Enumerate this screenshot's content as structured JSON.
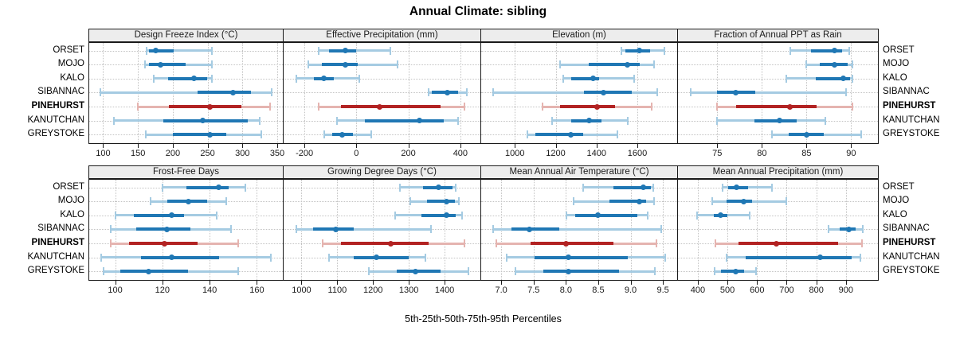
{
  "title": "Annual Climate: sibling",
  "footer_label": "5th-25th-50th-75th-95th Percentiles",
  "colors": {
    "site_dark": "#1f77b4",
    "site_light": "#a5cbe2",
    "highlight_dark": "#b22222",
    "highlight_light": "#e5b4b0",
    "strip_bg": "#ededed",
    "grid": "#c3c3c3",
    "border": "#1a1a1a"
  },
  "chart_data": {
    "type": "dot-interval percentile trellis (5th-25th-50th-75th-95th)",
    "grid": "dotted, on",
    "sites": [
      "ORSET",
      "MOJO",
      "KALO",
      "SIBANNAC",
      "PINEHURST",
      "KANUTCHAN",
      "GREYSTOKE"
    ],
    "highlight_site": "PINEHURST",
    "percentile_levels": [
      5,
      25,
      50,
      75,
      95
    ],
    "panels": [
      {
        "title": "Design Freeze Index (°C)",
        "row": 0,
        "col": 0,
        "xlim": [
          80,
          358
        ],
        "ticks": [
          100,
          150,
          200,
          250,
          300,
          350
        ],
        "tick_labels": [
          "100",
          "150",
          "200",
          "250",
          "300",
          "350"
        ],
        "values": [
          [
            162,
            166,
            175,
            201,
            256
          ],
          [
            160,
            166,
            182,
            219,
            256
          ],
          [
            173,
            193,
            231,
            249,
            256
          ],
          [
            96,
            236,
            287,
            312,
            342
          ],
          [
            150,
            194,
            253,
            299,
            340
          ],
          [
            116,
            186,
            243,
            308,
            325
          ],
          [
            161,
            200,
            253,
            277,
            327
          ]
        ]
      },
      {
        "title": "Effective Precipitation (mm)",
        "row": 0,
        "col": 1,
        "xlim": [
          -280,
          477
        ],
        "ticks": [
          -200,
          0,
          200,
          400
        ],
        "tick_labels": [
          "-200",
          "0",
          "200",
          "400"
        ],
        "values": [
          [
            -146,
            -104,
            -42,
            -2,
            130
          ],
          [
            -185,
            -134,
            -44,
            5,
            158
          ],
          [
            -230,
            -165,
            -124,
            -88,
            10
          ],
          [
            278,
            291,
            351,
            391,
            426
          ],
          [
            -144,
            -60,
            89,
            325,
            416
          ],
          [
            -74,
            32,
            244,
            335,
            391
          ],
          [
            -124,
            -94,
            -54,
            -14,
            58
          ]
        ]
      },
      {
        "title": "Elevation (m)",
        "row": 0,
        "col": 2,
        "xlim": [
          835,
          1795
        ],
        "ticks": [
          1000,
          1200,
          1400,
          1600
        ],
        "tick_labels": [
          "1000",
          "1200",
          "1400",
          "1600"
        ],
        "values": [
          [
            1520,
            1541,
            1608,
            1664,
            1732
          ],
          [
            1223,
            1363,
            1551,
            1612,
            1683
          ],
          [
            1236,
            1275,
            1385,
            1411,
            1586
          ],
          [
            892,
            1340,
            1434,
            1573,
            1696
          ],
          [
            1135,
            1220,
            1404,
            1492,
            1670
          ],
          [
            1184,
            1275,
            1363,
            1424,
            1553
          ],
          [
            1061,
            1100,
            1275,
            1333,
            1502
          ]
        ]
      },
      {
        "title": "Fraction of Annual PPT as Rain",
        "row": 0,
        "col": 3,
        "xlim": [
          70.6,
          93
        ],
        "ticks": [
          75,
          80,
          85,
          90
        ],
        "tick_labels": [
          "75",
          "80",
          "85",
          "90"
        ],
        "values": [
          [
            83.2,
            85.5,
            88.1,
            89.0,
            89.8
          ],
          [
            85.0,
            86.5,
            88.1,
            89.6,
            90.1
          ],
          [
            82.7,
            86.0,
            89.1,
            89.9,
            90.1
          ],
          [
            72.0,
            75.0,
            77.1,
            79.3,
            89.4
          ],
          [
            75.0,
            77.1,
            83.1,
            86.1,
            90.1
          ],
          [
            75.0,
            79.2,
            82.0,
            83.9,
            87.1
          ],
          [
            81.1,
            83.0,
            85.0,
            86.9,
            91.1
          ]
        ]
      },
      {
        "title": "Frost-Free Days",
        "row": 1,
        "col": 0,
        "xlim": [
          89,
          171
        ],
        "ticks": [
          100,
          120,
          140,
          160
        ],
        "tick_labels": [
          "100",
          "120",
          "140",
          "160"
        ],
        "values": [
          [
            120,
            130,
            144,
            148,
            155
          ],
          [
            115,
            122,
            131,
            139,
            147
          ],
          [
            100,
            108,
            124,
            129,
            143
          ],
          [
            98,
            109,
            122,
            132,
            149
          ],
          [
            98,
            106,
            121,
            135,
            152
          ],
          [
            94,
            111,
            124,
            144,
            166
          ],
          [
            95,
            102,
            114,
            131,
            152
          ]
        ]
      },
      {
        "title": "Growing Degree Days (°C)",
        "row": 1,
        "col": 1,
        "xlim": [
          950,
          1500
        ],
        "ticks": [
          1000,
          1100,
          1200,
          1300,
          1400
        ],
        "tick_labels": [
          "1000",
          "1100",
          "1200",
          "1300",
          "1400"
        ],
        "values": [
          [
            1276,
            1340,
            1383,
            1421,
            1432
          ],
          [
            1305,
            1350,
            1405,
            1428,
            1440
          ],
          [
            1262,
            1336,
            1405,
            1432,
            1448
          ],
          [
            985,
            1032,
            1096,
            1146,
            1363
          ],
          [
            1060,
            1110,
            1250,
            1356,
            1455
          ],
          [
            1077,
            1145,
            1210,
            1300,
            1346
          ],
          [
            1188,
            1266,
            1319,
            1389,
            1466
          ]
        ]
      },
      {
        "title": "Mean Annual Air Temperature (°C)",
        "row": 1,
        "col": 2,
        "xlim": [
          6.69,
          9.72
        ],
        "ticks": [
          7.0,
          7.5,
          8.0,
          8.5,
          9.0,
          9.5
        ],
        "tick_labels": [
          "7.0",
          "7.5",
          "8.0",
          "8.5",
          "9.0",
          "9.5"
        ],
        "values": [
          [
            8.27,
            8.73,
            9.2,
            9.31,
            9.35
          ],
          [
            8.12,
            8.67,
            9.13,
            9.24,
            9.36
          ],
          [
            8.01,
            8.14,
            8.49,
            9.1,
            9.27
          ],
          [
            6.88,
            7.16,
            7.43,
            7.9,
            9.47
          ],
          [
            6.93,
            7.45,
            8.0,
            8.73,
            9.4
          ],
          [
            7.08,
            7.51,
            8.04,
            8.96,
            9.54
          ],
          [
            7.22,
            7.65,
            8.04,
            8.82,
            9.37
          ]
        ]
      },
      {
        "title": "Mean Annual Precipitation (mm)",
        "row": 1,
        "col": 3,
        "xlim": [
          333,
          1008
        ],
        "ticks": [
          400,
          500,
          600,
          700,
          800,
          900
        ],
        "tick_labels": [
          "400",
          "500",
          "600",
          "700",
          "800",
          "900"
        ],
        "values": [
          [
            483,
            503,
            531,
            570,
            650
          ],
          [
            449,
            498,
            554,
            583,
            699
          ],
          [
            397,
            454,
            478,
            500,
            576
          ],
          [
            840,
            878,
            909,
            933,
            958
          ],
          [
            460,
            538,
            665,
            873,
            954
          ],
          [
            496,
            561,
            812,
            920,
            949
          ],
          [
            458,
            478,
            529,
            556,
            596
          ]
        ]
      }
    ]
  }
}
